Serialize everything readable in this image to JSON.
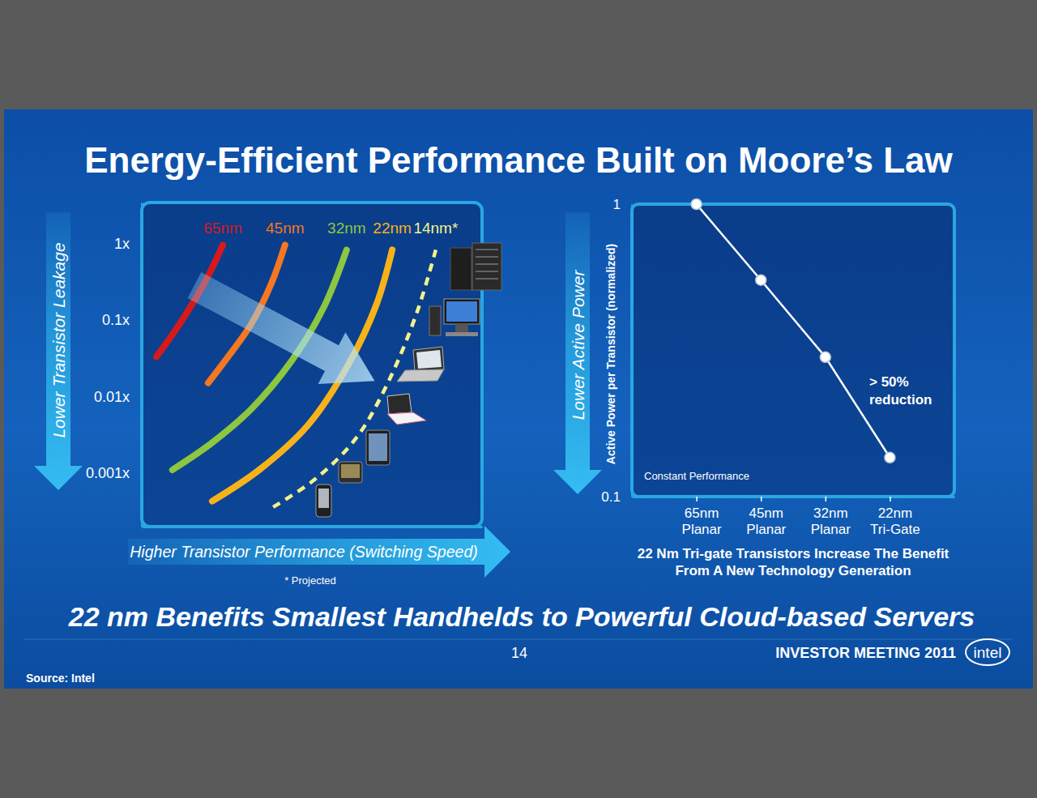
{
  "slide": {
    "title": "Energy-Efficient Performance Built on Moore’s Law",
    "headline": "22 nm Benefits Smallest Handhelds to Powerful Cloud-based Servers",
    "page_number": 14,
    "event": "INVESTOR MEETING 2011",
    "logo": "intel",
    "source": "Source: Intel"
  },
  "chart_data": [
    {
      "type": "line",
      "y_label": "Lower Transistor Leakage",
      "x_label": "Higher Transistor Performance (Switching Speed)",
      "note": "* Projected",
      "log": "y",
      "ylim": [
        0.0002,
        3.4
      ],
      "yticks": [
        {
          "value": 0.001,
          "label": "0.001x"
        },
        {
          "value": 0.01,
          "label": "0.01x"
        },
        {
          "value": 0.1,
          "label": "0.1x"
        },
        {
          "value": 1,
          "label": "1x"
        }
      ],
      "xlim": [
        0,
        10
      ],
      "tick_labels": "y",
      "series": [
        {
          "name": "65nm",
          "color": "#d7191c",
          "line_style": "solid",
          "x": [
            0.43,
            0.95,
            1.55,
            2.02,
            2.38
          ],
          "values": [
            0.033,
            0.069,
            0.18,
            0.43,
            0.95
          ]
        },
        {
          "name": "45nm",
          "color": "#f47721",
          "line_style": "solid",
          "x": [
            1.95,
            2.62,
            3.21,
            3.81,
            4.21
          ],
          "values": [
            0.015,
            0.037,
            0.087,
            0.3,
            0.95
          ]
        },
        {
          "name": "32nm",
          "color": "#8dc63f",
          "line_style": "solid",
          "x": [
            0.9,
            2.02,
            3.21,
            4.4,
            5.36,
            6.02
          ],
          "values": [
            0.0011,
            0.0024,
            0.0068,
            0.029,
            0.15,
            0.82
          ]
        },
        {
          "name": "22nm",
          "color": "#f7b21a",
          "line_style": "solid",
          "x": [
            2.07,
            3.45,
            4.88,
            6.07,
            6.9,
            7.36
          ],
          "values": [
            0.00043,
            0.0011,
            0.0042,
            0.026,
            0.16,
            0.82
          ]
        },
        {
          "name": "14nm*",
          "color": "#f4f28a",
          "line_style": "dashed",
          "x": [
            3.86,
            5.12,
            6.31,
            7.26,
            8.1,
            8.64
          ],
          "values": [
            0.00036,
            0.00085,
            0.0029,
            0.016,
            0.13,
            0.82
          ]
        }
      ]
    },
    {
      "type": "line",
      "categories": [
        "65nm Planar",
        "45nm Planar",
        "32nm Planar",
        "22nm Tri-Gate"
      ],
      "values": [
        1,
        0.55,
        0.3,
        0.136
      ],
      "color": "#ffffff",
      "marker": "circle",
      "log": "y",
      "ylim": [
        0.1,
        1
      ],
      "yticks": [
        0.1,
        1
      ],
      "y_label": "Active Power per Transistor (normalized)",
      "y_arrow_label": "Lower Active Power",
      "reduction_label": [
        "> 50%",
        "reduction"
      ],
      "condition_label": "Constant Performance",
      "caption": [
        "22 Nm Tri-gate Transistors Increase The Benefit",
        "From A New Technology Generation"
      ]
    }
  ]
}
